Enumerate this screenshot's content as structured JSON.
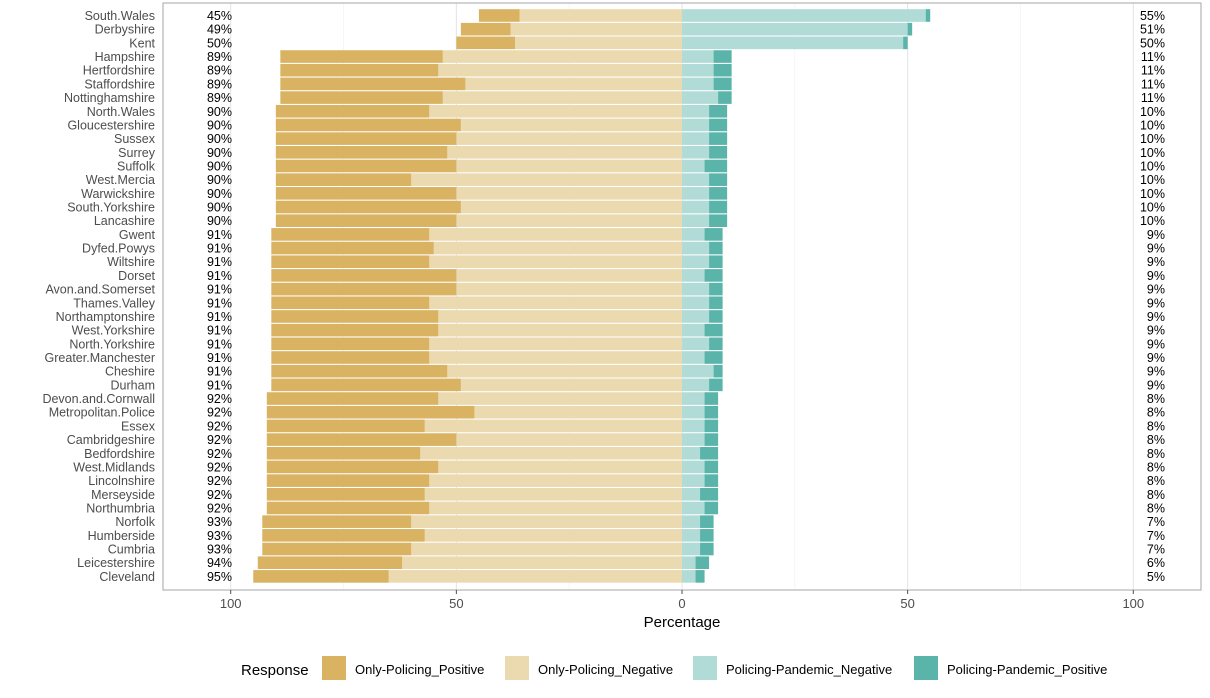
{
  "chart_data": {
    "type": "bar",
    "orientation": "diverging-horizontal",
    "xlabel": "Percentage",
    "xlim": [
      -115,
      115
    ],
    "x_ticks": [
      -100,
      -50,
      0,
      50,
      100
    ],
    "x_tick_labels": [
      "100",
      "50",
      "0",
      "50",
      "100"
    ],
    "grid": true,
    "legend": {
      "title": "Response",
      "position": "bottom",
      "entries": [
        {
          "name": "Only-Policing_Positive",
          "color": "#d9b262"
        },
        {
          "name": "Only-Policing_Negative",
          "color": "#ebd9b0"
        },
        {
          "name": "Policing-Pandemic_Negative",
          "color": "#b1dbd7"
        },
        {
          "name": "Policing-Pandemic_Positive",
          "color": "#5ab4aa"
        }
      ]
    },
    "categories": [
      "South.Wales",
      "Derbyshire",
      "Kent",
      "Hampshire",
      "Hertfordshire",
      "Staffordshire",
      "Nottinghamshire",
      "North.Wales",
      "Gloucestershire",
      "Sussex",
      "Surrey",
      "Suffolk",
      "West.Mercia",
      "Warwickshire",
      "South.Yorkshire",
      "Lancashire",
      "Gwent",
      "Dyfed.Powys",
      "Wiltshire",
      "Dorset",
      "Avon.and.Somerset",
      "Thames.Valley",
      "Northamptonshire",
      "West.Yorkshire",
      "North.Yorkshire",
      "Greater.Manchester",
      "Cheshire",
      "Durham",
      "Devon.and.Cornwall",
      "Metropolitan.Police",
      "Essex",
      "Cambridgeshire",
      "Bedfordshire",
      "West.Midlands",
      "Lincolnshire",
      "Merseyside",
      "Northumbria",
      "Norfolk",
      "Humberside",
      "Cumbria",
      "Leicestershire",
      "Cleveland"
    ],
    "left_labels": [
      "45%",
      "49%",
      "50%",
      "89%",
      "89%",
      "89%",
      "89%",
      "90%",
      "90%",
      "90%",
      "90%",
      "90%",
      "90%",
      "90%",
      "90%",
      "90%",
      "91%",
      "91%",
      "91%",
      "91%",
      "91%",
      "91%",
      "91%",
      "91%",
      "91%",
      "91%",
      "91%",
      "91%",
      "92%",
      "92%",
      "92%",
      "92%",
      "92%",
      "92%",
      "92%",
      "92%",
      "92%",
      "93%",
      "93%",
      "93%",
      "94%",
      "95%"
    ],
    "right_labels": [
      "55%",
      "51%",
      "50%",
      "11%",
      "11%",
      "11%",
      "11%",
      "10%",
      "10%",
      "10%",
      "10%",
      "10%",
      "10%",
      "10%",
      "10%",
      "10%",
      "9%",
      "9%",
      "9%",
      "9%",
      "9%",
      "9%",
      "9%",
      "9%",
      "9%",
      "9%",
      "9%",
      "9%",
      "8%",
      "8%",
      "8%",
      "8%",
      "8%",
      "8%",
      "8%",
      "8%",
      "8%",
      "7%",
      "7%",
      "7%",
      "6%",
      "5%"
    ],
    "series": [
      {
        "name": "Only-Policing_Positive",
        "side": "left",
        "values": [
          9,
          11,
          13,
          36,
          35,
          41,
          36,
          34,
          41,
          40,
          38,
          40,
          30,
          40,
          41,
          40,
          35,
          36,
          35,
          41,
          41,
          35,
          37,
          37,
          35,
          35,
          39,
          42,
          38,
          46,
          35,
          42,
          34,
          38,
          36,
          35,
          36,
          33,
          36,
          33,
          32,
          30
        ]
      },
      {
        "name": "Only-Policing_Negative",
        "side": "left",
        "values": [
          36,
          38,
          37,
          53,
          54,
          48,
          53,
          56,
          49,
          50,
          52,
          50,
          60,
          50,
          49,
          50,
          56,
          55,
          56,
          50,
          50,
          56,
          54,
          54,
          56,
          56,
          52,
          49,
          54,
          46,
          57,
          50,
          58,
          54,
          56,
          57,
          56,
          60,
          57,
          60,
          62,
          65
        ]
      },
      {
        "name": "Policing-Pandemic_Negative",
        "side": "right",
        "values": [
          54,
          50,
          49,
          7,
          7,
          7,
          8,
          6,
          6,
          6,
          6,
          5,
          6,
          6,
          6,
          6,
          5,
          6,
          6,
          5,
          6,
          6,
          6,
          5,
          6,
          5,
          7,
          6,
          5,
          5,
          5,
          5,
          4,
          5,
          5,
          4,
          5,
          4,
          4,
          4,
          3,
          3
        ]
      },
      {
        "name": "Policing-Pandemic_Positive",
        "side": "right",
        "values": [
          1,
          1,
          1,
          4,
          4,
          4,
          3,
          4,
          4,
          4,
          4,
          5,
          4,
          4,
          4,
          4,
          4,
          3,
          3,
          4,
          3,
          3,
          3,
          4,
          3,
          4,
          2,
          3,
          3,
          3,
          3,
          3,
          4,
          3,
          3,
          4,
          3,
          3,
          3,
          3,
          3,
          2
        ]
      }
    ]
  }
}
